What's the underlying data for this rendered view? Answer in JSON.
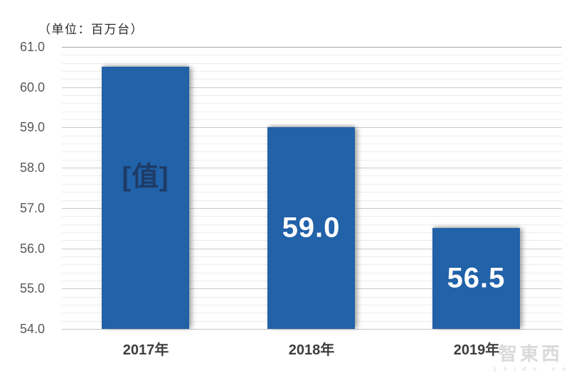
{
  "chart_data": {
    "type": "bar",
    "unit": "（单位：百万台）",
    "categories": [
      "2017年",
      "2018年",
      "2019年"
    ],
    "values": [
      60.5,
      59.0,
      56.5
    ],
    "bar_labels": [
      "[值]",
      "59.0",
      "56.5"
    ],
    "yticks": [
      "61.0",
      "60.0",
      "59.0",
      "58.0",
      "57.0",
      "56.0",
      "55.0",
      "54.0"
    ],
    "ylim": [
      54.0,
      61.0
    ],
    "ytick_interval": 1.0,
    "minor_tick_interval": 0.2,
    "grid": "major+minor horizontal gridlines",
    "legend": "none",
    "bar_color": "#2162A8",
    "bar_label_colors": [
      "#1E3C67",
      "#FFFFFF",
      "#FFFFFF"
    ],
    "axis_label_color": "#595959"
  },
  "watermark": {
    "text": "智東西",
    "site": "z h i d x . c o m"
  }
}
